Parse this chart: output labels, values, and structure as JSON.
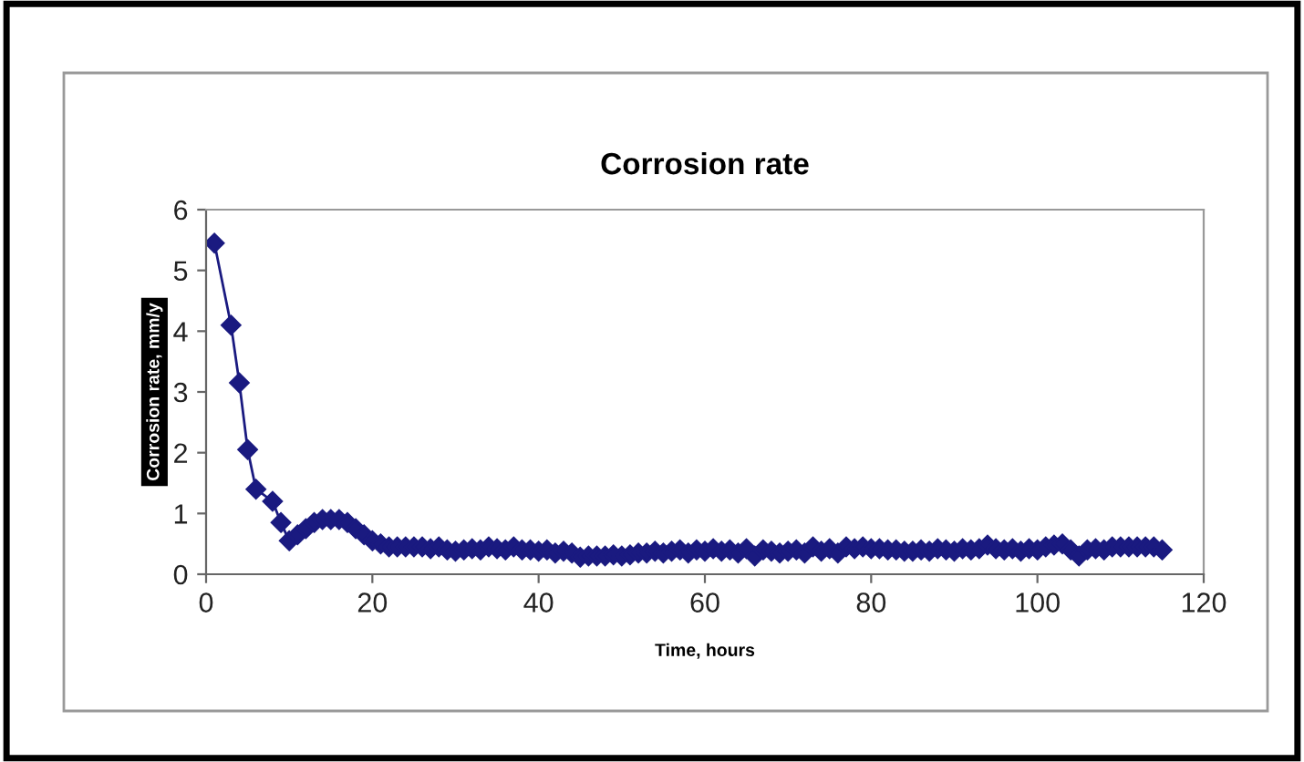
{
  "chart_data": {
    "type": "line",
    "title": "Corrosion rate",
    "xlabel": "Time, hours",
    "ylabel": "Corrosion rate, mm/y",
    "xlim": [
      0,
      120
    ],
    "xticks": [
      0,
      20,
      40,
      60,
      80,
      100,
      120
    ],
    "ylim": [
      0,
      6
    ],
    "yticks": [
      0,
      1,
      2,
      3,
      4,
      5,
      6
    ],
    "grid": false,
    "legend": false,
    "marker": "diamond",
    "line_style": "solid",
    "series": [
      {
        "color": "#1a1a80",
        "x": [
          1,
          3,
          4,
          5,
          6,
          8,
          9,
          10,
          11,
          12,
          13,
          14,
          15,
          16,
          17,
          18,
          19,
          20,
          21,
          22,
          23,
          24,
          25,
          26,
          27,
          28,
          29,
          30,
          31,
          32,
          33,
          34,
          35,
          36,
          37,
          38,
          39,
          40,
          41,
          42,
          43,
          44,
          45,
          46,
          47,
          48,
          49,
          50,
          51,
          52,
          53,
          54,
          55,
          56,
          57,
          58,
          59,
          60,
          61,
          62,
          63,
          64,
          65,
          66,
          67,
          68,
          69,
          70,
          71,
          72,
          73,
          74,
          75,
          76,
          77,
          78,
          79,
          80,
          81,
          82,
          83,
          84,
          85,
          86,
          87,
          88,
          89,
          90,
          91,
          92,
          93,
          94,
          95,
          96,
          97,
          98,
          99,
          100,
          101,
          102,
          103,
          104,
          105,
          106,
          107,
          108,
          109,
          110,
          111,
          112,
          113,
          114,
          115
        ],
        "values": [
          5.45,
          4.1,
          3.15,
          2.05,
          1.4,
          1.2,
          0.85,
          0.55,
          0.65,
          0.75,
          0.85,
          0.9,
          0.9,
          0.9,
          0.85,
          0.75,
          0.65,
          0.55,
          0.5,
          0.45,
          0.45,
          0.45,
          0.45,
          0.45,
          0.42,
          0.45,
          0.4,
          0.38,
          0.4,
          0.42,
          0.4,
          0.45,
          0.42,
          0.4,
          0.45,
          0.4,
          0.4,
          0.38,
          0.4,
          0.35,
          0.38,
          0.35,
          0.28,
          0.3,
          0.3,
          0.3,
          0.32,
          0.3,
          0.32,
          0.35,
          0.35,
          0.38,
          0.35,
          0.38,
          0.4,
          0.35,
          0.4,
          0.38,
          0.42,
          0.38,
          0.4,
          0.35,
          0.42,
          0.3,
          0.4,
          0.38,
          0.35,
          0.38,
          0.4,
          0.35,
          0.45,
          0.38,
          0.42,
          0.35,
          0.45,
          0.42,
          0.45,
          0.42,
          0.42,
          0.4,
          0.4,
          0.38,
          0.38,
          0.4,
          0.38,
          0.42,
          0.4,
          0.38,
          0.42,
          0.4,
          0.42,
          0.48,
          0.42,
          0.4,
          0.42,
          0.38,
          0.42,
          0.4,
          0.45,
          0.48,
          0.5,
          0.4,
          0.3,
          0.4,
          0.42,
          0.4,
          0.45,
          0.45,
          0.45,
          0.45,
          0.45,
          0.45,
          0.4
        ]
      }
    ]
  }
}
